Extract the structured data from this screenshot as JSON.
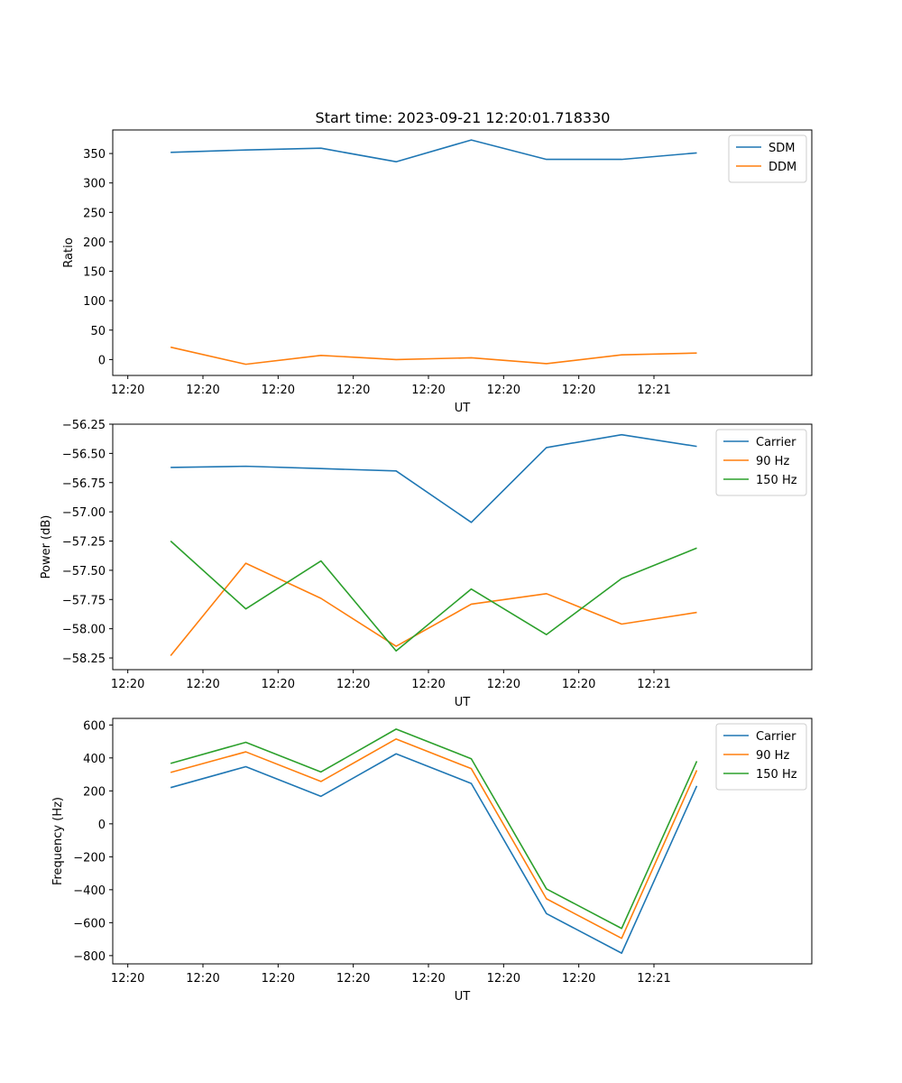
{
  "title": "Start time: 2023-09-21 12:20:01.718330",
  "colors": {
    "blue": "#1f77b4",
    "orange": "#ff7f0e",
    "green": "#2ca02c"
  },
  "chart_data": [
    {
      "type": "line",
      "ylabel": "Ratio",
      "xlabel": "UT",
      "x_ticks": [
        "12:20",
        "12:20",
        "12:20",
        "12:20",
        "12:20",
        "12:20",
        "12:20",
        "12:21"
      ],
      "xlim": [
        0,
        9.3
      ],
      "ylim": [
        -27,
        390
      ],
      "y_ticks": [
        0,
        50,
        100,
        150,
        200,
        250,
        300,
        350
      ],
      "y_tick_labels": [
        "0",
        "50",
        "100",
        "150",
        "200",
        "250",
        "300",
        "350"
      ],
      "legend": "top-right",
      "series": [
        {
          "name": "SDM",
          "color": "#1f77b4",
          "x": [
            0.77,
            1.77,
            2.77,
            3.77,
            4.77,
            5.77,
            6.77,
            7.77
          ],
          "values": [
            352,
            356,
            359,
            336,
            373,
            340,
            340,
            351
          ]
        },
        {
          "name": "DDM",
          "color": "#ff7f0e",
          "x": [
            0.77,
            1.77,
            2.77,
            3.77,
            4.77,
            5.77,
            6.77,
            7.77
          ],
          "values": [
            21,
            -8,
            7,
            0,
            3,
            -7,
            8,
            11
          ]
        }
      ]
    },
    {
      "type": "line",
      "ylabel": "Power (dB)",
      "xlabel": "UT",
      "x_ticks": [
        "12:20",
        "12:20",
        "12:20",
        "12:20",
        "12:20",
        "12:20",
        "12:20",
        "12:21"
      ],
      "xlim": [
        0,
        9.3
      ],
      "ylim": [
        -58.35,
        -56.25
      ],
      "y_ticks": [
        -58.25,
        -58.0,
        -57.75,
        -57.5,
        -57.25,
        -57.0,
        -56.75,
        -56.5,
        -56.25
      ],
      "y_tick_labels": [
        "−58.25",
        "−58.00",
        "−57.75",
        "−57.50",
        "−57.25",
        "−57.00",
        "−56.75",
        "−56.50",
        "−56.25"
      ],
      "legend": "top-right",
      "series": [
        {
          "name": "Carrier",
          "color": "#1f77b4",
          "x": [
            0.77,
            1.77,
            2.77,
            3.77,
            4.77,
            5.77,
            6.77,
            7.77
          ],
          "values": [
            -56.62,
            -56.61,
            -56.63,
            -56.65,
            -57.09,
            -56.45,
            -56.34,
            -56.44
          ]
        },
        {
          "name": "90 Hz",
          "color": "#ff7f0e",
          "x": [
            0.77,
            1.77,
            2.77,
            3.77,
            4.77,
            5.77,
            6.77,
            7.77
          ],
          "values": [
            -58.23,
            -57.44,
            -57.74,
            -58.15,
            -57.79,
            -57.7,
            -57.96,
            -57.86
          ]
        },
        {
          "name": "150 Hz",
          "color": "#2ca02c",
          "x": [
            0.77,
            1.77,
            2.77,
            3.77,
            4.77,
            5.77,
            6.77,
            7.77
          ],
          "values": [
            -57.25,
            -57.83,
            -57.42,
            -58.19,
            -57.66,
            -58.05,
            -57.57,
            -57.31
          ]
        }
      ]
    },
    {
      "type": "line",
      "ylabel": "Frequency (Hz)",
      "xlabel": "UT",
      "x_ticks": [
        "12:20",
        "12:20",
        "12:20",
        "12:20",
        "12:20",
        "12:20",
        "12:20",
        "12:21"
      ],
      "xlim": [
        0,
        9.3
      ],
      "ylim": [
        -850,
        640
      ],
      "y_ticks": [
        -800,
        -600,
        -400,
        -200,
        0,
        200,
        400,
        600
      ],
      "y_tick_labels": [
        "−800",
        "−600",
        "−400",
        "−200",
        "0",
        "200",
        "400",
        "600"
      ],
      "legend": "top-right",
      "series": [
        {
          "name": "Carrier",
          "color": "#1f77b4",
          "x": [
            0.77,
            1.77,
            2.77,
            3.77,
            4.77,
            5.77,
            6.77,
            7.77
          ],
          "values": [
            220,
            347,
            167,
            425,
            245,
            -545,
            -785,
            230
          ]
        },
        {
          "name": "90 Hz",
          "color": "#ff7f0e",
          "x": [
            0.77,
            1.77,
            2.77,
            3.77,
            4.77,
            5.77,
            6.77,
            7.77
          ],
          "values": [
            312,
            437,
            257,
            515,
            335,
            -455,
            -695,
            325
          ]
        },
        {
          "name": "150 Hz",
          "color": "#2ca02c",
          "x": [
            0.77,
            1.77,
            2.77,
            3.77,
            4.77,
            5.77,
            6.77,
            7.77
          ],
          "values": [
            367,
            495,
            315,
            575,
            395,
            -395,
            -635,
            380
          ]
        }
      ]
    }
  ]
}
